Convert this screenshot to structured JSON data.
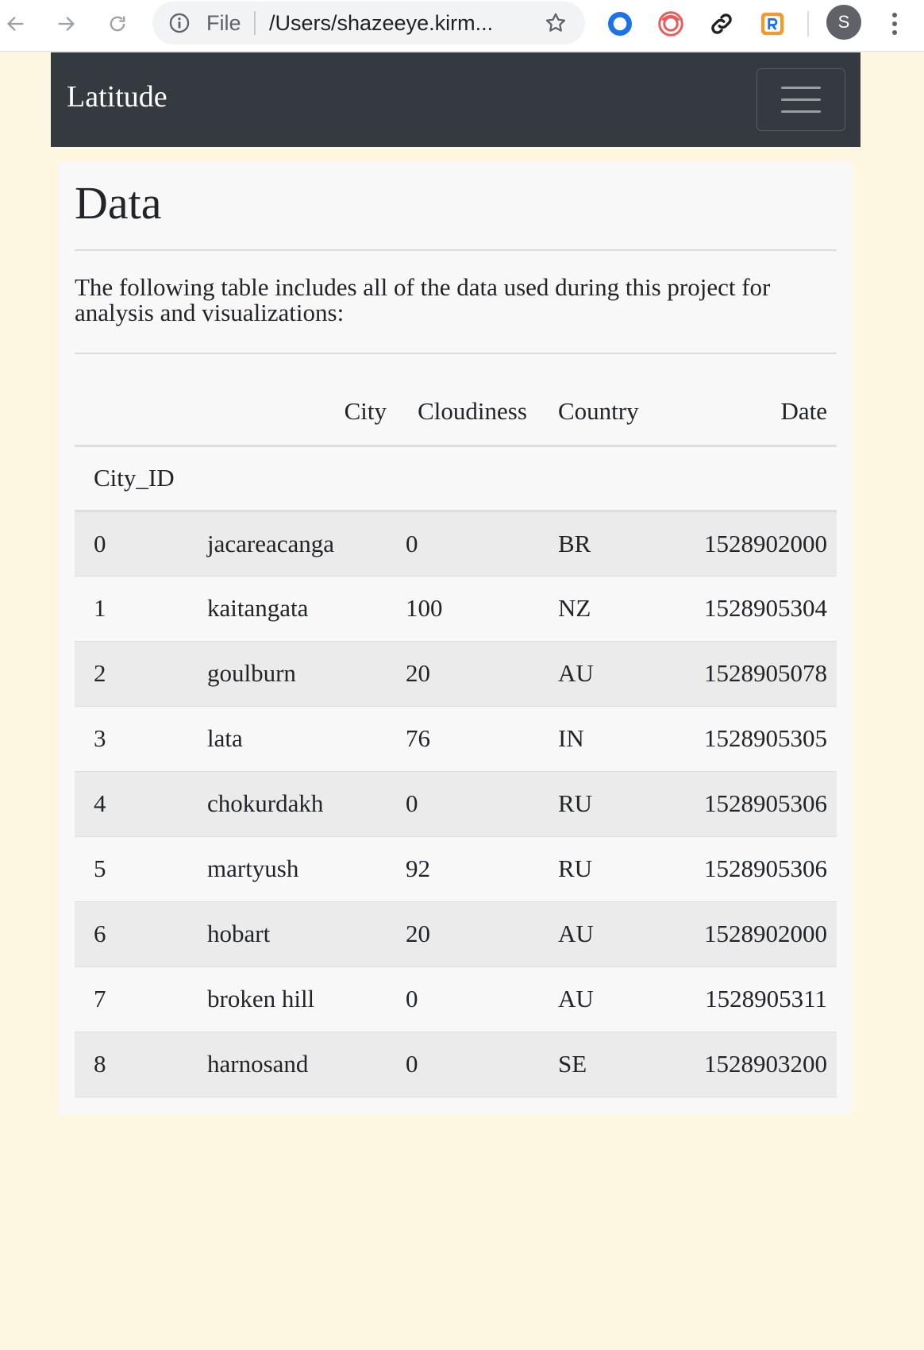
{
  "browser": {
    "address_label": "File",
    "url": "/Users/shazeeye.kirm...",
    "profile_initial": "S",
    "extensions": [
      "blue-ring-extension",
      "red-swirl-extension",
      "link-extension",
      "orange-r-extension"
    ]
  },
  "navbar": {
    "brand": "Latitude"
  },
  "main": {
    "title": "Data",
    "description": "The following table includes all of the data used during this project for analysis and visualizations:",
    "table": {
      "columns": [
        "City",
        "Cloudiness",
        "Country",
        "Date"
      ],
      "index_name": "City_ID",
      "rows": [
        {
          "id": "0",
          "city": "jacareacanga",
          "cloudiness": "0",
          "country": "BR",
          "date": "1528902000"
        },
        {
          "id": "1",
          "city": "kaitangata",
          "cloudiness": "100",
          "country": "NZ",
          "date": "1528905304"
        },
        {
          "id": "2",
          "city": "goulburn",
          "cloudiness": "20",
          "country": "AU",
          "date": "1528905078"
        },
        {
          "id": "3",
          "city": "lata",
          "cloudiness": "76",
          "country": "IN",
          "date": "1528905305"
        },
        {
          "id": "4",
          "city": "chokurdakh",
          "cloudiness": "0",
          "country": "RU",
          "date": "1528905306"
        },
        {
          "id": "5",
          "city": "martyush",
          "cloudiness": "92",
          "country": "RU",
          "date": "1528905306"
        },
        {
          "id": "6",
          "city": "hobart",
          "cloudiness": "20",
          "country": "AU",
          "date": "1528902000"
        },
        {
          "id": "7",
          "city": "broken hill",
          "cloudiness": "0",
          "country": "AU",
          "date": "1528905311"
        },
        {
          "id": "8",
          "city": "harnosand",
          "cloudiness": "0",
          "country": "SE",
          "date": "1528903200"
        }
      ]
    }
  }
}
